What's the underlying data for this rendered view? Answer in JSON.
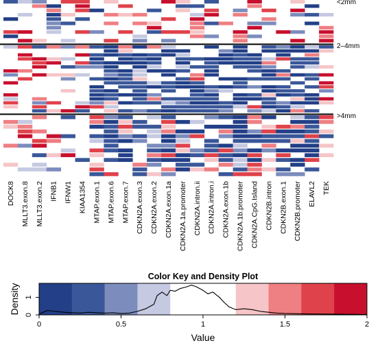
{
  "chart_data": [
    {
      "type": "heatmap",
      "columns": [
        "DOCK8",
        "MLLT3.exon.8",
        "MLLT3.exon.2",
        "IFNB1",
        "IFNW1",
        "KIAA1354",
        "MTAP.exon.1",
        "MTAP.exon.6",
        "MTAP.exon.7",
        "CDKN2A.exon.3",
        "CDKN2A.exon.2",
        "CDKN2A.exon.1a",
        "CDKN2A.1a.promoter",
        "CDKN2A.intron.ii",
        "CDKN2A.intron.i",
        "CDKN2A.exon.1b",
        "CDKN2A.1b.promoter",
        "CDKN2A.CpG.Island",
        "CDKN2B.intron",
        "CDKN2B.exon.1",
        "CDKN2B.promoter",
        "ELAVL2",
        "TEK"
      ],
      "groups": [
        {
          "label": "<2mm",
          "rows": 10
        },
        {
          "label": "2–4mm",
          "rows": 17
        },
        {
          "label": ">4mm",
          "rows": 13
        }
      ],
      "color_scale": {
        "min": 0,
        "max": 2,
        "low": "#2b4a8f",
        "mid": "#ffffff",
        "high": "#c8102e"
      }
    },
    {
      "type": "area",
      "title": "Color Key and Density Plot",
      "xlabel": "Value",
      "ylabel": "Density",
      "xlim": [
        0,
        2
      ],
      "ylim": [
        0,
        1.8
      ],
      "x_ticks": [
        "0",
        "0.5",
        "1",
        "1.5",
        "2"
      ],
      "y_ticks": [
        "0",
        "1"
      ],
      "key_breaks": [
        0,
        0.2,
        0.4,
        0.6,
        0.8,
        1.2,
        1.4,
        1.6,
        1.8,
        2.0
      ],
      "key_colors": [
        "#223f87",
        "#3a5799",
        "#7c8cbd",
        "#c5c9e1",
        "#ffffff",
        "#f6c5c7",
        "#ee7f83",
        "#e0424b",
        "#c8102e"
      ],
      "density": {
        "x": [
          0,
          0.05,
          0.1,
          0.15,
          0.2,
          0.25,
          0.3,
          0.35,
          0.4,
          0.45,
          0.5,
          0.55,
          0.6,
          0.65,
          0.7,
          0.72,
          0.75,
          0.78,
          0.8,
          0.83,
          0.86,
          0.9,
          0.93,
          0.96,
          1.0,
          1.03,
          1.06,
          1.1,
          1.13,
          1.16,
          1.2,
          1.25,
          1.3,
          1.35,
          1.4,
          1.45,
          1.5,
          1.6,
          1.7,
          1.8,
          1.9,
          2.0
        ],
        "y": [
          0.05,
          0.25,
          0.2,
          0.15,
          0.12,
          0.1,
          0.15,
          0.12,
          0.1,
          0.12,
          0.08,
          0.1,
          0.2,
          0.35,
          0.6,
          1.1,
          1.3,
          1.1,
          1.4,
          1.35,
          1.5,
          1.6,
          1.7,
          1.6,
          1.4,
          1.2,
          1.3,
          1.0,
          0.7,
          0.45,
          0.3,
          0.35,
          0.3,
          0.2,
          0.15,
          0.1,
          0.08,
          0.06,
          0.05,
          0.04,
          0.03,
          0.02
        ]
      }
    }
  ]
}
